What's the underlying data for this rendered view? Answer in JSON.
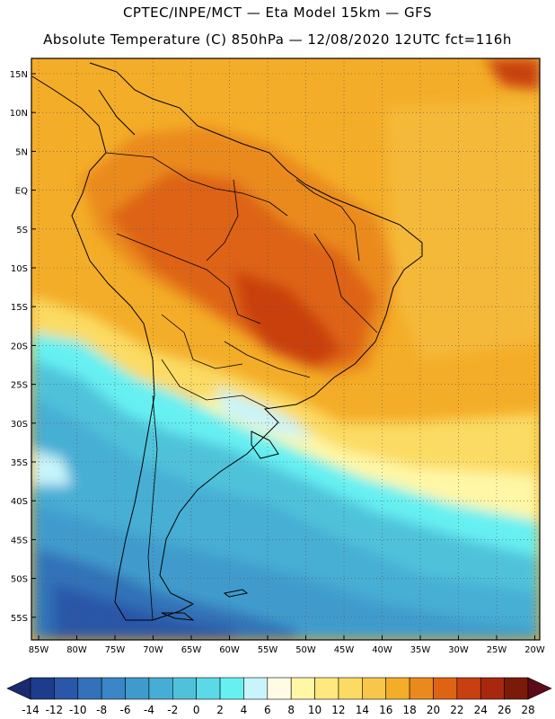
{
  "title_line1": "CPTEC/INPE/MCT —  Eta Model 15km — GFS",
  "title_line2": "Absolute Temperature (C) 850hPa — 12/08/2020 12UTC fct=116h",
  "lat_labels": [
    "15N",
    "10N",
    "5N",
    "EQ",
    "5S",
    "10S",
    "15S",
    "20S",
    "25S",
    "30S",
    "35S",
    "40S",
    "45S",
    "50S",
    "55S"
  ],
  "lon_labels": [
    "85W",
    "80W",
    "75W",
    "70W",
    "65W",
    "60W",
    "55W",
    "50W",
    "45W",
    "40W",
    "35W",
    "30W",
    "25W",
    "20W"
  ],
  "colorbar": {
    "labels": [
      "-14",
      "-12",
      "-10",
      "-8",
      "-6",
      "-4",
      "-2",
      "0",
      "2",
      "4",
      "6",
      "8",
      "10",
      "12",
      "14",
      "16",
      "18",
      "20",
      "22",
      "24",
      "26",
      "28"
    ],
    "colors": [
      "#1e3c8c",
      "#2a57a8",
      "#3372b8",
      "#3a86c6",
      "#3f9bcc",
      "#46aed4",
      "#4fc2da",
      "#5cd9e6",
      "#66f0f2",
      "#c8f4fb",
      "#fffbe4",
      "#fff7a6",
      "#ffe97e",
      "#fbdb64",
      "#f8c64a",
      "#f4ad28",
      "#ea8a1c",
      "#de6414",
      "#c94010",
      "#a8280e",
      "#7c1a0a"
    ],
    "under_color": "#1a2a70",
    "over_color": "#5c0b18"
  }
}
